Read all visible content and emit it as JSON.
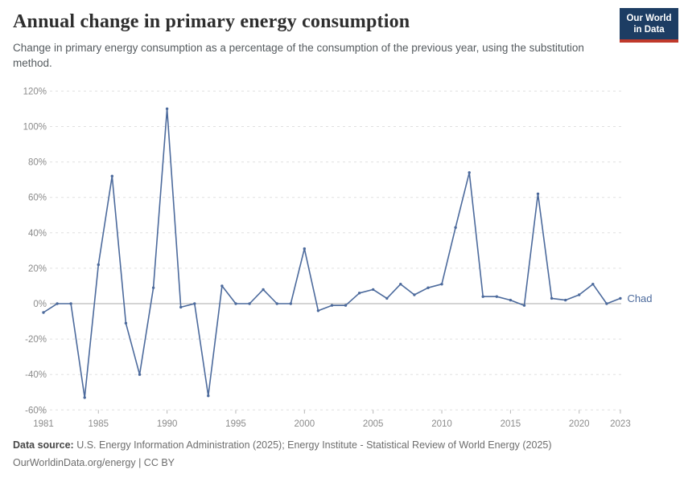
{
  "header": {
    "title": "Annual change in primary energy consumption",
    "subtitle": "Change in primary energy consumption as a percentage of the consumption of the previous year, using the substitution method.",
    "logo": {
      "line1": "Our World",
      "line2": "in Data"
    }
  },
  "chart_data": {
    "type": "line",
    "title": "Annual change in primary energy consumption",
    "unit": "%",
    "x": [
      1981,
      1982,
      1983,
      1984,
      1985,
      1986,
      1987,
      1988,
      1989,
      1990,
      1991,
      1992,
      1993,
      1994,
      1995,
      1996,
      1997,
      1998,
      1999,
      2000,
      2001,
      2002,
      2003,
      2004,
      2005,
      2006,
      2007,
      2008,
      2009,
      2010,
      2011,
      2012,
      2013,
      2014,
      2015,
      2016,
      2017,
      2018,
      2019,
      2020,
      2021,
      2022,
      2023
    ],
    "series": [
      {
        "name": "Chad",
        "color": "#4C6A9C",
        "values": [
          -5,
          0,
          0,
          -53,
          22,
          72,
          -11,
          -40,
          9,
          110,
          -2,
          0,
          -52,
          10,
          0,
          0,
          8,
          0,
          0,
          31,
          -4,
          -1,
          -1,
          6,
          8,
          3,
          11,
          5,
          9,
          11,
          43,
          74,
          4,
          4,
          2,
          -1,
          62,
          3,
          2,
          5,
          11,
          0,
          3
        ]
      }
    ],
    "ylim": [
      -60,
      120
    ],
    "yticks": [
      {
        "value": 120,
        "label": "120%"
      },
      {
        "value": 100,
        "label": "100%"
      },
      {
        "value": 80,
        "label": "80%"
      },
      {
        "value": 60,
        "label": "60%"
      },
      {
        "value": 40,
        "label": "40%"
      },
      {
        "value": 20,
        "label": "20%"
      },
      {
        "value": 0,
        "label": "0%"
      },
      {
        "value": -20,
        "label": "-20%"
      },
      {
        "value": -40,
        "label": "-40%"
      },
      {
        "value": -60,
        "label": "-60%"
      }
    ],
    "xticks": [
      {
        "year": 1981,
        "label": "1981"
      },
      {
        "year": 1985,
        "label": "1985"
      },
      {
        "year": 1990,
        "label": "1990"
      },
      {
        "year": 1995,
        "label": "1995"
      },
      {
        "year": 2000,
        "label": "2000"
      },
      {
        "year": 2005,
        "label": "2005"
      },
      {
        "year": 2010,
        "label": "2010"
      },
      {
        "year": 2015,
        "label": "2015"
      },
      {
        "year": 2020,
        "label": "2020"
      },
      {
        "year": 2023,
        "label": "2023"
      }
    ],
    "grid": "horizontal-dashed",
    "zero_line": true,
    "legend": "end-of-line-label",
    "end_label": "Chad"
  },
  "footer": {
    "source_label": "Data source:",
    "source_text": " U.S. Energy Information Administration (2025); Energy Institute - Statistical Review of World Energy (2025)",
    "license_text": "OurWorldinData.org/energy | CC BY"
  },
  "colors": {
    "line": "#4C6A9C",
    "logo_navy": "#1d3d63",
    "logo_red": "#c0392b",
    "grid": "#e0e0e0",
    "zero_line": "#a8a8a8",
    "tick_text": "#8b8b8b"
  }
}
